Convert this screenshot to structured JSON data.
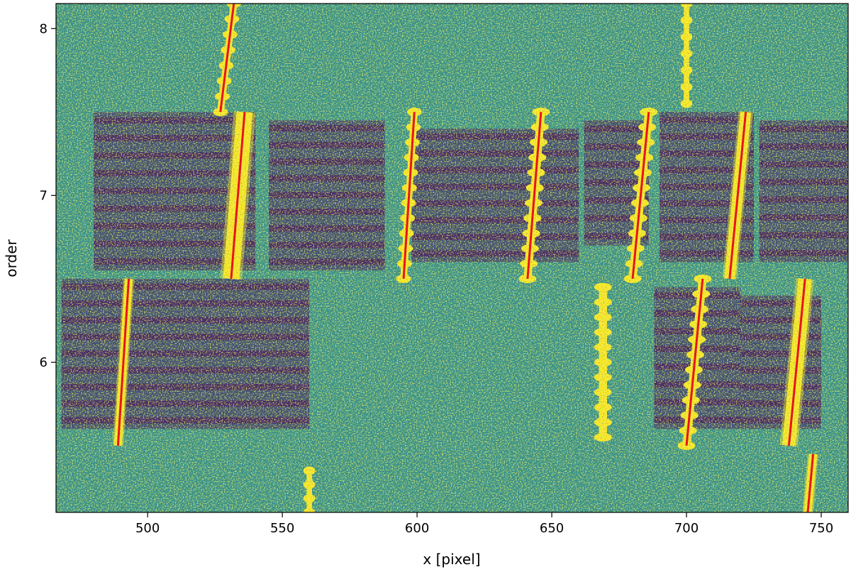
{
  "chart_data": {
    "type": "heatmap",
    "xlabel": "x [pixel]",
    "ylabel": "order",
    "xlim": [
      466,
      760
    ],
    "ylim": [
      5.1,
      8.15
    ],
    "x_ticks": [
      500,
      550,
      600,
      650,
      700,
      750
    ],
    "y_ticks": [
      6,
      7,
      8
    ],
    "colormap": "viridis",
    "colors": {
      "background": "#2e8f8b",
      "bright_line": "#f5e61f",
      "dark_band": "#3b0f5c",
      "fit_line": "#e8141e"
    },
    "dark_regions": [
      {
        "x": [
          480,
          540
        ],
        "y": [
          6.55,
          7.5
        ]
      },
      {
        "x": [
          545,
          588
        ],
        "y": [
          6.55,
          7.45
        ]
      },
      {
        "x": [
          598,
          660
        ],
        "y": [
          6.6,
          7.4
        ]
      },
      {
        "x": [
          662,
          686
        ],
        "y": [
          6.7,
          7.45
        ]
      },
      {
        "x": [
          690,
          725
        ],
        "y": [
          6.6,
          7.5
        ]
      },
      {
        "x": [
          727,
          760
        ],
        "y": [
          6.6,
          7.45
        ]
      },
      {
        "x": [
          468,
          560
        ],
        "y": [
          5.6,
          6.5
        ]
      },
      {
        "x": [
          688,
          720
        ],
        "y": [
          5.6,
          6.45
        ]
      },
      {
        "x": [
          720,
          750
        ],
        "y": [
          5.6,
          6.4
        ]
      }
    ],
    "bright_lines": [
      {
        "x": [
          527,
          532
        ],
        "y": [
          7.5,
          8.15
        ],
        "width": 2.5,
        "beaded": true
      },
      {
        "x": [
          531,
          536
        ],
        "y": [
          6.5,
          7.5
        ],
        "width": 6
      },
      {
        "x": [
          489,
          493
        ],
        "y": [
          5.5,
          6.5
        ],
        "width": 3
      },
      {
        "x": [
          595,
          599
        ],
        "y": [
          6.5,
          7.5
        ],
        "width": 2.5,
        "beaded": true
      },
      {
        "x": [
          641,
          646
        ],
        "y": [
          6.5,
          7.5
        ],
        "width": 3,
        "beaded": true
      },
      {
        "x": [
          680,
          686
        ],
        "y": [
          6.5,
          7.5
        ],
        "width": 3,
        "beaded": true
      },
      {
        "x": [
          716,
          722
        ],
        "y": [
          6.5,
          7.5
        ],
        "width": 4
      },
      {
        "x": [
          669,
          669
        ],
        "y": [
          5.55,
          6.45
        ],
        "width": 3,
        "beaded": true
      },
      {
        "x": [
          700,
          706
        ],
        "y": [
          5.5,
          6.5
        ],
        "width": 3,
        "beaded": true
      },
      {
        "x": [
          738,
          744
        ],
        "y": [
          5.5,
          6.5
        ],
        "width": 5
      },
      {
        "x": [
          745,
          747
        ],
        "y": [
          5.1,
          5.45
        ],
        "width": 3
      },
      {
        "x": [
          560,
          560
        ],
        "y": [
          5.1,
          5.35
        ],
        "width": 2,
        "beaded": true
      },
      {
        "x": [
          700,
          700
        ],
        "y": [
          7.55,
          8.15
        ],
        "width": 2,
        "beaded": true
      }
    ],
    "fit_lines": [
      {
        "x": [
          527,
          532
        ],
        "y": [
          7.5,
          8.15
        ]
      },
      {
        "x": [
          531,
          536
        ],
        "y": [
          6.5,
          7.5
        ]
      },
      {
        "x": [
          489,
          493
        ],
        "y": [
          5.5,
          6.5
        ]
      },
      {
        "x": [
          595,
          599
        ],
        "y": [
          6.5,
          7.5
        ]
      },
      {
        "x": [
          641,
          646
        ],
        "y": [
          6.5,
          7.5
        ]
      },
      {
        "x": [
          680,
          686
        ],
        "y": [
          6.5,
          7.5
        ]
      },
      {
        "x": [
          716,
          722
        ],
        "y": [
          6.5,
          7.5
        ]
      },
      {
        "x": [
          700,
          706
        ],
        "y": [
          5.5,
          6.5
        ]
      },
      {
        "x": [
          738,
          744
        ],
        "y": [
          5.5,
          6.5
        ]
      },
      {
        "x": [
          745,
          747
        ],
        "y": [
          5.1,
          5.45
        ]
      }
    ]
  }
}
